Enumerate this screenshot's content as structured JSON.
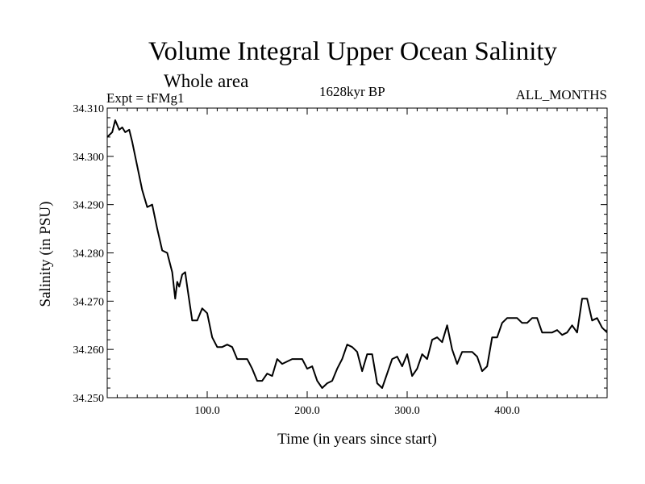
{
  "chart_data": {
    "type": "line",
    "title": "Volume Integral Upper Ocean Salinity",
    "subtitle": "Whole area",
    "experiment": "Expt = tFMg1",
    "period": "1628kyr BP",
    "months": "ALL_MONTHS",
    "xlabel": "Time (in years since start)",
    "ylabel": "Salinity (in PSU)",
    "xlim": [
      0,
      500
    ],
    "ylim": [
      34.25,
      34.31
    ],
    "xticks": [
      {
        "value": 100,
        "label": "100.0"
      },
      {
        "value": 200,
        "label": "200.0"
      },
      {
        "value": 300,
        "label": "300.0"
      },
      {
        "value": 400,
        "label": "400.0"
      }
    ],
    "yticks": [
      {
        "value": 34.25,
        "label": "34.250"
      },
      {
        "value": 34.26,
        "label": "34.260"
      },
      {
        "value": 34.27,
        "label": "34.270"
      },
      {
        "value": 34.28,
        "label": "34.280"
      },
      {
        "value": 34.29,
        "label": "34.290"
      },
      {
        "value": 34.3,
        "label": "34.300"
      },
      {
        "value": 34.31,
        "label": "34.310"
      }
    ],
    "series": [
      {
        "name": "Salinity",
        "x": [
          0,
          5,
          8,
          12,
          15,
          18,
          22,
          25,
          30,
          35,
          40,
          45,
          50,
          55,
          60,
          65,
          68,
          70,
          72,
          75,
          78,
          80,
          85,
          90,
          95,
          100,
          105,
          110,
          115,
          120,
          125,
          130,
          135,
          140,
          145,
          150,
          155,
          160,
          165,
          170,
          175,
          180,
          185,
          190,
          195,
          200,
          205,
          210,
          215,
          220,
          225,
          230,
          235,
          240,
          245,
          250,
          255,
          260,
          265,
          270,
          275,
          280,
          285,
          290,
          295,
          300,
          305,
          310,
          315,
          320,
          325,
          330,
          335,
          340,
          345,
          350,
          355,
          360,
          365,
          370,
          375,
          380,
          385,
          390,
          395,
          400,
          405,
          410,
          415,
          420,
          425,
          430,
          435,
          440,
          445,
          450,
          455,
          460,
          465,
          470,
          475,
          480,
          485,
          490,
          495,
          500
        ],
        "values": [
          34.304,
          34.305,
          34.3075,
          34.3055,
          34.306,
          34.305,
          34.3055,
          34.303,
          34.298,
          34.293,
          34.2895,
          34.29,
          34.285,
          34.2805,
          34.28,
          34.276,
          34.2705,
          34.274,
          34.273,
          34.2755,
          34.276,
          34.273,
          34.266,
          34.266,
          34.2685,
          34.2675,
          34.2625,
          34.2605,
          34.2605,
          34.261,
          34.2605,
          34.258,
          34.258,
          34.258,
          34.256,
          34.2535,
          34.2535,
          34.255,
          34.2545,
          34.258,
          34.257,
          34.2575,
          34.258,
          34.258,
          34.258,
          34.256,
          34.2565,
          34.2535,
          34.252,
          34.253,
          34.2535,
          34.256,
          34.258,
          34.261,
          34.2605,
          34.2595,
          34.2555,
          34.259,
          34.259,
          34.253,
          34.252,
          34.255,
          34.258,
          34.2585,
          34.2565,
          34.259,
          34.2545,
          34.256,
          34.259,
          34.258,
          34.262,
          34.2625,
          34.2615,
          34.265,
          34.26,
          34.257,
          34.2595,
          34.2595,
          34.2595,
          34.2585,
          34.2555,
          34.2565,
          34.2625,
          34.2625,
          34.2655,
          34.2665,
          34.2665,
          34.2665,
          34.2655,
          34.2655,
          34.2665,
          34.2665,
          34.2635,
          34.2635,
          34.2635,
          34.264,
          34.263,
          34.2635,
          34.265,
          34.2635,
          34.2705,
          34.2705,
          34.266,
          34.2665,
          34.2645,
          34.2635
        ]
      }
    ]
  }
}
